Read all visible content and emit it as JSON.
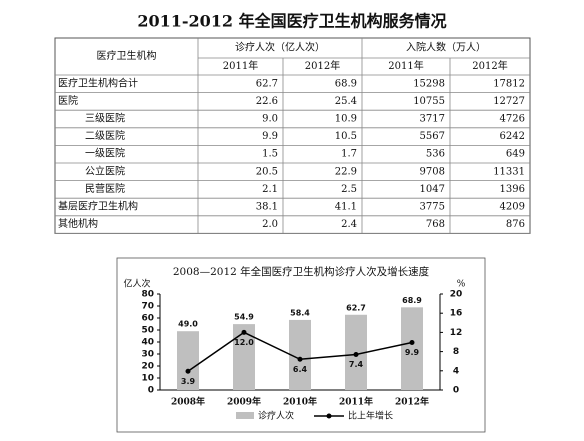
{
  "header": {
    "title": "2011-2012 年全国医疗卫生机构服务情况"
  },
  "table": {
    "header_row": [
      "医疗卫生机构",
      "诊疗人次（亿人次）",
      "入院人数（万人）"
    ],
    "sub_header": [
      "2011年",
      "2012年",
      "2011年",
      "2012年"
    ],
    "rows": [
      [
        "医疗卫生机构合计",
        "62.7",
        "68.9",
        "15298",
        "17812"
      ],
      [
        "医院",
        "22.6",
        "25.4",
        "10755",
        "12727"
      ],
      [
        "三级医院",
        "9.0",
        "10.9",
        "3717",
        "4726"
      ],
      [
        "二级医院",
        "9.9",
        "10.5",
        "5567",
        "6242"
      ],
      [
        "一级医院",
        "1.5",
        "1.7",
        "536",
        "649"
      ],
      [
        "公立医院",
        "20.5",
        "22.9",
        "9708",
        "11331"
      ],
      [
        "民营医院",
        "2.1",
        "2.5",
        "1047",
        "1396"
      ],
      [
        "基层医疗卫生机构",
        "38.1",
        "41.1",
        "3775",
        "4209"
      ],
      [
        "其他机构",
        "2.0",
        "2.4",
        "768",
        "876"
      ]
    ]
  },
  "chart_data": {
    "type": "bar-line",
    "title": "2008—2012 年全国医疗卫生机构诊疗人次及增长速度",
    "y_label": "亿人次",
    "y2_label": "%",
    "categories": [
      "2008年",
      "2009年",
      "2010年",
      "2011年",
      "2012年"
    ],
    "series": [
      {
        "name": "诊疗人次",
        "type": "bar",
        "color": "#bfbfbf",
        "values": [
          49,
          54.9,
          58.4,
          62.7,
          68.9
        ],
        "value_labels": [
          "49.0",
          "54.9",
          "58.4",
          "62.7",
          "68.9"
        ]
      },
      {
        "name": "比上年增长",
        "type": "line",
        "axis": "y2",
        "color": "#000000",
        "values": [
          3.9,
          12,
          6.4,
          7.4,
          9.9
        ],
        "value_labels": [
          "3.9",
          "12.0",
          "6.4",
          "7.4",
          "9.9"
        ]
      }
    ],
    "ylim": [
      0,
      80
    ],
    "yticks": [
      0,
      10,
      20,
      30,
      40,
      50,
      60,
      70,
      80
    ],
    "y2lim": [
      0,
      20
    ],
    "y2ticks": [
      0,
      4,
      8,
      12,
      16,
      20
    ]
  }
}
